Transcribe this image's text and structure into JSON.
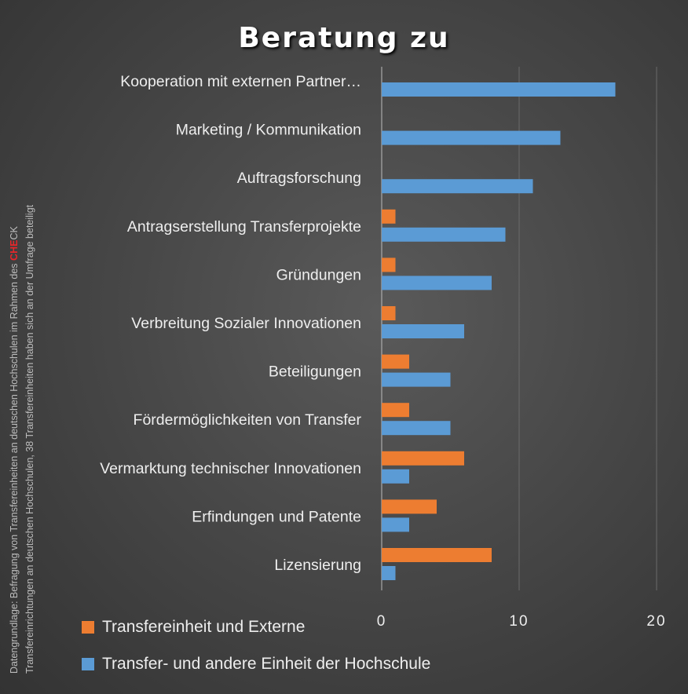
{
  "chart_data": {
    "type": "bar",
    "orientation": "horizontal",
    "title": "Beratung zu",
    "categories": [
      "Kooperation mit externen Partner…",
      "Marketing / Kommunikation",
      "Auftragsforschung",
      "Antragserstellung Transferprojekte",
      "Gründungen",
      "Verbreitung Sozialer Innovationen",
      "Beteiligungen",
      "Fördermöglichkeiten von Transfer",
      "Vermarktung technischer Innovationen",
      "Erfindungen und Patente",
      "Lizensierung"
    ],
    "series": [
      {
        "name": "Transfereinheit und Externe",
        "color": "#ed7d31",
        "values": [
          0,
          0,
          0,
          1,
          1,
          1,
          2,
          2,
          6,
          4,
          8
        ]
      },
      {
        "name": "Transfer- und andere Einheit der Hochschule",
        "color": "#5b9bd5",
        "values": [
          17,
          13,
          11,
          9,
          8,
          6,
          5,
          5,
          2,
          2,
          1
        ]
      }
    ],
    "xlim": [
      0,
      20
    ],
    "xticks": [
      "0",
      "10",
      "20"
    ],
    "grid": true,
    "legend": "bottom-left"
  },
  "source": {
    "line1_prefix": "Datengrundlage: Befragung von Transfereinheiten an deutschen Hochschulen im Rahmen des ",
    "logo_che": "CHE",
    "logo_ck": "CK",
    "line2": "Transfereinrichtungen an deutschen Hochschulen,  38 Transfereinheiten haben sich an der Umfrage beteiligt"
  }
}
